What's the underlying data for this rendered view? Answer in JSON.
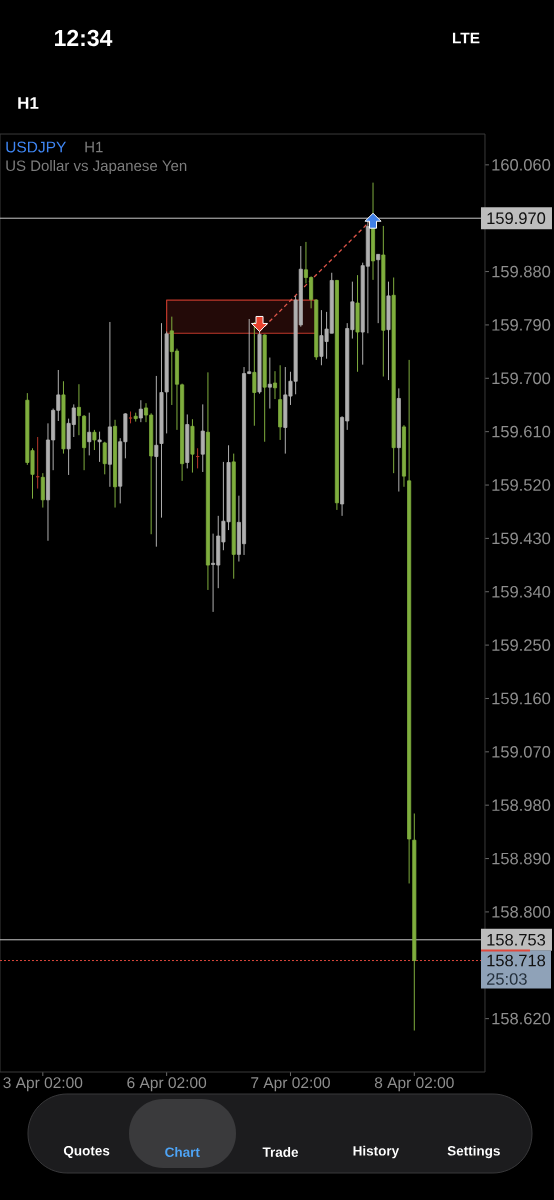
{
  "chart_data": {
    "type": "candlestick",
    "title": "USDJPY",
    "subtitle": "US Dollar vs Japanese Yen",
    "categories": [
      null,
      null,
      null,
      "3 Apr 02:00",
      null,
      null,
      null,
      null,
      null,
      null,
      null,
      null,
      null,
      null,
      null,
      null,
      null,
      null,
      null,
      null,
      null,
      null,
      null,
      null,
      null,
      null,
      null,
      "6 Apr 02:00",
      null,
      null,
      null,
      null,
      null,
      null,
      null,
      null,
      null,
      null,
      null,
      null,
      null,
      null,
      null,
      null,
      null,
      null,
      null,
      null,
      null,
      null,
      null,
      "7 Apr 02:00",
      null,
      null,
      null,
      null,
      null,
      null,
      null,
      null,
      null,
      null,
      null,
      null,
      null,
      null,
      null,
      null,
      null,
      null,
      null,
      null,
      null,
      null,
      null,
      "8 Apr 02:00"
    ],
    "ohlc": [
      [
        159.663,
        159.675,
        159.554,
        159.558
      ],
      [
        159.578,
        159.582,
        159.497,
        159.538
      ],
      [
        159.534,
        159.601,
        159.514,
        159.534
      ],
      [
        159.533,
        159.54,
        159.482,
        159.495
      ],
      [
        159.495,
        159.624,
        159.426,
        159.596
      ],
      [
        159.596,
        159.649,
        159.545,
        159.646
      ],
      [
        159.646,
        159.714,
        159.628,
        159.672
      ],
      [
        159.672,
        159.695,
        159.573,
        159.581
      ],
      [
        159.581,
        159.632,
        159.537,
        159.624
      ],
      [
        159.622,
        159.656,
        159.601,
        159.65
      ],
      [
        159.651,
        159.69,
        159.604,
        159.637
      ],
      [
        159.636,
        159.638,
        159.545,
        159.583
      ],
      [
        159.593,
        159.642,
        159.57,
        159.609
      ],
      [
        159.609,
        159.613,
        159.579,
        159.596
      ],
      [
        159.593,
        159.61,
        159.559,
        159.596
      ],
      [
        159.591,
        159.593,
        159.538,
        159.556
      ],
      [
        159.555,
        159.795,
        159.517,
        159.618
      ],
      [
        159.619,
        159.63,
        159.482,
        159.517
      ],
      [
        159.518,
        159.599,
        159.489,
        159.593
      ],
      [
        159.593,
        159.641,
        159.565,
        159.64
      ],
      [
        159.633,
        159.644,
        159.624,
        159.633
      ],
      [
        159.636,
        159.642,
        159.627,
        159.632
      ],
      [
        159.633,
        159.663,
        159.626,
        159.648
      ],
      [
        159.65,
        159.658,
        159.626,
        159.638
      ],
      [
        159.638,
        159.641,
        159.437,
        159.569
      ],
      [
        159.568,
        159.704,
        159.416,
        159.587
      ],
      [
        159.59,
        159.793,
        159.465,
        159.676
      ],
      [
        159.677,
        159.779,
        159.607,
        159.775
      ],
      [
        159.78,
        159.804,
        159.655,
        159.745
      ],
      [
        159.746,
        159.75,
        159.613,
        159.69
      ],
      [
        159.689,
        159.691,
        159.527,
        159.556
      ],
      [
        159.558,
        159.639,
        159.548,
        159.622
      ],
      [
        159.619,
        159.631,
        159.541,
        159.572
      ],
      [
        159.568,
        159.582,
        159.548,
        159.568
      ],
      [
        159.572,
        159.656,
        159.542,
        159.611
      ],
      [
        159.609,
        159.71,
        159.343,
        159.385
      ],
      [
        159.386,
        159.438,
        159.306,
        159.388
      ],
      [
        159.385,
        159.468,
        159.346,
        159.434
      ],
      [
        159.424,
        159.559,
        159.41,
        159.459
      ],
      [
        159.458,
        159.587,
        159.444,
        159.558
      ],
      [
        159.559,
        159.573,
        159.362,
        159.403
      ],
      [
        159.403,
        159.502,
        159.391,
        159.457
      ],
      [
        159.421,
        159.719,
        159.402,
        159.708
      ],
      [
        159.708,
        159.8,
        159.707,
        159.711
      ],
      [
        159.71,
        159.795,
        159.62,
        159.676
      ],
      [
        159.677,
        159.781,
        159.674,
        159.774
      ],
      [
        159.773,
        159.774,
        159.593,
        159.685
      ],
      [
        159.685,
        159.735,
        159.649,
        159.69
      ],
      [
        159.692,
        159.712,
        159.665,
        159.684
      ],
      [
        159.664,
        159.722,
        159.596,
        159.618
      ],
      [
        159.617,
        159.719,
        159.573,
        159.672
      ],
      [
        159.67,
        159.711,
        159.655,
        159.695
      ],
      [
        159.695,
        159.839,
        159.673,
        159.832
      ],
      [
        159.79,
        159.923,
        159.787,
        159.884
      ],
      [
        159.883,
        159.93,
        159.86,
        159.87
      ],
      [
        159.87,
        159.872,
        159.818,
        159.833
      ],
      [
        159.832,
        159.833,
        159.731,
        159.736
      ],
      [
        159.737,
        159.815,
        159.722,
        159.772
      ],
      [
        159.762,
        159.812,
        159.733,
        159.783
      ],
      [
        159.776,
        159.878,
        159.776,
        159.865
      ],
      [
        159.865,
        159.866,
        159.478,
        159.49
      ],
      [
        159.488,
        159.636,
        159.468,
        159.634
      ],
      [
        159.628,
        159.793,
        159.613,
        159.784
      ],
      [
        159.782,
        159.863,
        159.767,
        159.829
      ],
      [
        159.827,
        159.874,
        159.711,
        159.778
      ],
      [
        159.778,
        159.895,
        159.723,
        159.89
      ],
      [
        159.889,
        159.967,
        159.776,
        159.956
      ],
      [
        159.958,
        160.03,
        159.866,
        159.898
      ],
      [
        159.9,
        159.909,
        159.793,
        159.909
      ],
      [
        159.908,
        159.957,
        159.703,
        159.781
      ],
      [
        159.782,
        159.863,
        159.697,
        159.839
      ],
      [
        159.84,
        159.87,
        159.54,
        159.583
      ],
      [
        159.583,
        159.683,
        159.509,
        159.666
      ],
      [
        159.618,
        159.621,
        159.517,
        159.535
      ],
      [
        159.527,
        159.731,
        158.848,
        158.923
      ],
      [
        158.921,
        158.966,
        158.6,
        158.718
      ]
    ],
    "colors": [
      "#7fae3e",
      "#7fae3e",
      "#b5372a",
      "#7fae3e",
      "#b0b0b0",
      "#b0b0b0",
      "#b0b0b0",
      "#7fae3e",
      "#b0b0b0",
      "#b0b0b0",
      "#7fae3e",
      "#7fae3e",
      "#b0b0b0",
      "#7fae3e",
      "#b0b0b0",
      "#7fae3e",
      "#b0b0b0",
      "#7fae3e",
      "#b0b0b0",
      "#b0b0b0",
      "#b5372a",
      "#7fae3e",
      "#b0b0b0",
      "#7fae3e",
      "#7fae3e",
      "#b0b0b0",
      "#b0b0b0",
      "#b0b0b0",
      "#7fae3e",
      "#7fae3e",
      "#7fae3e",
      "#b0b0b0",
      "#7fae3e",
      "#b5372a",
      "#b0b0b0",
      "#7fae3e",
      "#b0b0b0",
      "#b0b0b0",
      "#b0b0b0",
      "#b0b0b0",
      "#7fae3e",
      "#b0b0b0",
      "#b0b0b0",
      "#b0b0b0",
      "#7fae3e",
      "#b0b0b0",
      "#7fae3e",
      "#b0b0b0",
      "#7fae3e",
      "#7fae3e",
      "#b0b0b0",
      "#b0b0b0",
      "#b0b0b0",
      "#b0b0b0",
      "#7fae3e",
      "#7fae3e",
      "#7fae3e",
      "#b0b0b0",
      "#b0b0b0",
      "#b0b0b0",
      "#7fae3e",
      "#b0b0b0",
      "#b0b0b0",
      "#b0b0b0",
      "#7fae3e",
      "#b0b0b0",
      "#b0b0b0",
      "#7fae3e",
      "#b0b0b0",
      "#7fae3e",
      "#b0b0b0",
      "#7fae3e",
      "#b0b0b0",
      "#7fae3e",
      "#7fae3e",
      "#7fae3e"
    ],
    "ylim": [
      158.53,
      160.112
    ],
    "yticks": [
      {
        "value": 160.06,
        "label": "160.060"
      },
      {
        "value": 159.88,
        "label": "159.880"
      },
      {
        "value": 159.79,
        "label": "159.790"
      },
      {
        "value": 159.7,
        "label": "159.700"
      },
      {
        "value": 159.61,
        "label": "159.610"
      },
      {
        "value": 159.52,
        "label": "159.520"
      },
      {
        "value": 159.43,
        "label": "159.430"
      },
      {
        "value": 159.34,
        "label": "159.340"
      },
      {
        "value": 159.25,
        "label": "159.250"
      },
      {
        "value": 159.16,
        "label": "159.160"
      },
      {
        "value": 159.07,
        "label": "159.070"
      },
      {
        "value": 158.98,
        "label": "158.980"
      },
      {
        "value": 158.89,
        "label": "158.890"
      },
      {
        "value": 158.8,
        "label": "158.800"
      },
      {
        "value": 158.62,
        "label": "158.620"
      }
    ],
    "ref_lines": [
      {
        "axis": "y",
        "value": 159.97,
        "label": "159.970",
        "color": "#c8c8c8"
      },
      {
        "axis": "y",
        "value": 158.753,
        "label": "158.753",
        "color": "#c8c8c8"
      },
      {
        "axis": "y",
        "value": 158.718,
        "label": "158.718",
        "color": "#e0483c",
        "line_style": "dotted"
      }
    ],
    "series": [
      {
        "type": "line",
        "color": "#e0574a",
        "line_style": "dashed",
        "values": [
          null,
          null,
          null,
          null,
          null,
          null,
          null,
          null,
          null,
          null,
          null,
          null,
          null,
          null,
          null,
          null,
          null,
          null,
          null,
          null,
          null,
          null,
          null,
          null,
          null,
          null,
          null,
          null,
          null,
          null,
          null,
          null,
          null,
          null,
          null,
          null,
          null,
          null,
          null,
          null,
          null,
          null,
          null,
          null,
          null,
          159.779,
          null,
          null,
          null,
          null,
          null,
          null,
          null,
          null,
          null,
          null,
          null,
          null,
          null,
          null,
          null,
          null,
          null,
          null,
          null,
          null,
          null,
          159.97,
          null,
          null,
          null,
          null,
          null,
          null,
          null,
          null
        ]
      },
      {
        "type": "line",
        "color": "#c0392b",
        "line_style": "solid",
        "values": [
          null,
          null,
          null,
          null,
          null,
          null,
          null,
          null,
          null,
          null,
          null,
          null,
          null,
          null,
          null,
          null,
          null,
          null,
          null,
          null,
          null,
          null,
          null,
          null,
          null,
          null,
          null,
          null,
          null,
          null,
          null,
          null,
          null,
          null,
          null,
          null,
          null,
          null,
          null,
          null,
          null,
          null,
          null,
          null,
          null,
          null,
          null,
          null,
          null,
          null,
          null,
          null,
          null,
          null,
          null,
          null,
          null,
          null,
          null,
          null,
          null,
          null,
          null,
          null,
          null,
          null,
          null,
          null,
          null,
          null,
          null,
          null,
          null,
          null,
          null,
          null
        ],
        "lower": [
          null,
          null,
          null,
          null,
          null,
          null,
          null,
          null,
          null,
          null,
          null,
          null,
          null,
          null,
          null,
          null,
          null,
          null,
          null,
          null,
          null,
          null,
          null,
          null,
          null,
          null,
          null,
          159.776,
          159.776,
          159.776,
          159.776,
          159.776,
          159.776,
          159.776,
          159.776,
          159.776,
          159.776,
          159.776,
          159.776,
          159.776,
          159.776,
          159.776,
          159.776,
          159.776,
          159.776,
          159.776,
          159.776,
          159.776,
          159.776,
          159.776,
          159.776,
          159.776,
          159.776,
          159.776,
          159.776,
          159.776,
          159.776,
          null,
          null,
          null,
          null,
          null,
          null,
          null,
          null,
          null,
          null,
          null,
          null,
          null,
          null,
          null,
          null,
          null,
          null,
          null
        ],
        "upper": [
          null,
          null,
          null,
          null,
          null,
          null,
          null,
          null,
          null,
          null,
          null,
          null,
          null,
          null,
          null,
          null,
          null,
          null,
          null,
          null,
          null,
          null,
          null,
          null,
          null,
          null,
          null,
          159.832,
          159.832,
          159.832,
          159.832,
          159.832,
          159.832,
          159.832,
          159.832,
          159.832,
          159.832,
          159.832,
          159.832,
          159.832,
          159.832,
          159.832,
          159.832,
          159.832,
          159.832,
          159.832,
          159.832,
          159.832,
          159.832,
          159.832,
          159.832,
          159.832,
          159.832,
          159.832,
          159.832,
          159.832,
          159.832,
          null,
          null,
          null,
          null,
          null,
          null,
          null,
          null,
          null,
          null,
          null,
          null,
          null,
          null,
          null,
          null,
          null,
          null,
          null
        ]
      }
    ],
    "annotations": [
      "12:34",
      "LTE",
      "H1",
      "H1",
      "25:03",
      "Quotes",
      "Chart",
      "Trade",
      "History",
      "Settings"
    ]
  }
}
